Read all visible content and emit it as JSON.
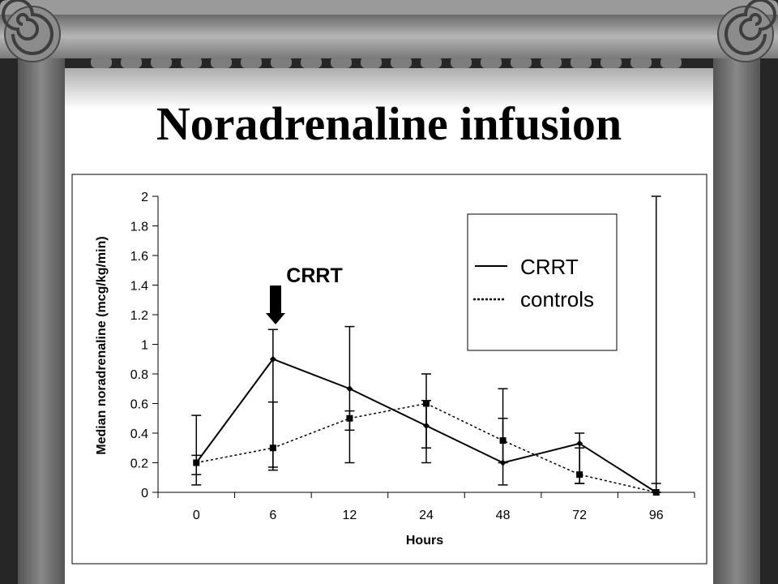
{
  "slide": {
    "title": "Noradrenaline infusion"
  },
  "annotation": {
    "label": "CRRT"
  },
  "legend": {
    "items": [
      {
        "label": "CRRT",
        "style": "solid"
      },
      {
        "label": "controls",
        "style": "dotted"
      }
    ]
  },
  "colors": {
    "background": "#2b2b2b",
    "column": "#6f6f6f",
    "slide": "#ffffff",
    "series": "#000000"
  },
  "chart_data": {
    "type": "line",
    "title": "",
    "xlabel": "Hours",
    "ylabel": "Median noradrenaline (mcg/kg/min)",
    "categories": [
      "0",
      "6",
      "12",
      "24",
      "48",
      "72",
      "96"
    ],
    "ylim": [
      0,
      2
    ],
    "yticks": [
      "0",
      "0.2",
      "0.4",
      "0.6",
      "0.8",
      "1",
      "1.2",
      "1.4",
      "1.6",
      "1.8",
      "2"
    ],
    "legend_position": "top-right",
    "series": [
      {
        "name": "CRRT",
        "line": "solid",
        "marker": "diamond",
        "values": [
          0.2,
          0.9,
          0.7,
          0.45,
          0.2,
          0.33,
          0.0
        ],
        "error_low": [
          0.05,
          0.15,
          0.2,
          0.2,
          0.05,
          0.06,
          0.0
        ],
        "error_high": [
          0.52,
          1.1,
          1.12,
          0.8,
          0.7,
          0.4,
          2.0
        ]
      },
      {
        "name": "controls",
        "line": "dotted",
        "marker": "square",
        "values": [
          0.2,
          0.3,
          0.5,
          0.6,
          0.35,
          0.12,
          0.0
        ],
        "error_low": [
          0.12,
          0.17,
          0.42,
          0.3,
          0.2,
          0.06,
          0.0
        ],
        "error_high": [
          0.25,
          0.61,
          0.55,
          0.62,
          0.5,
          0.3,
          0.06
        ]
      }
    ]
  }
}
